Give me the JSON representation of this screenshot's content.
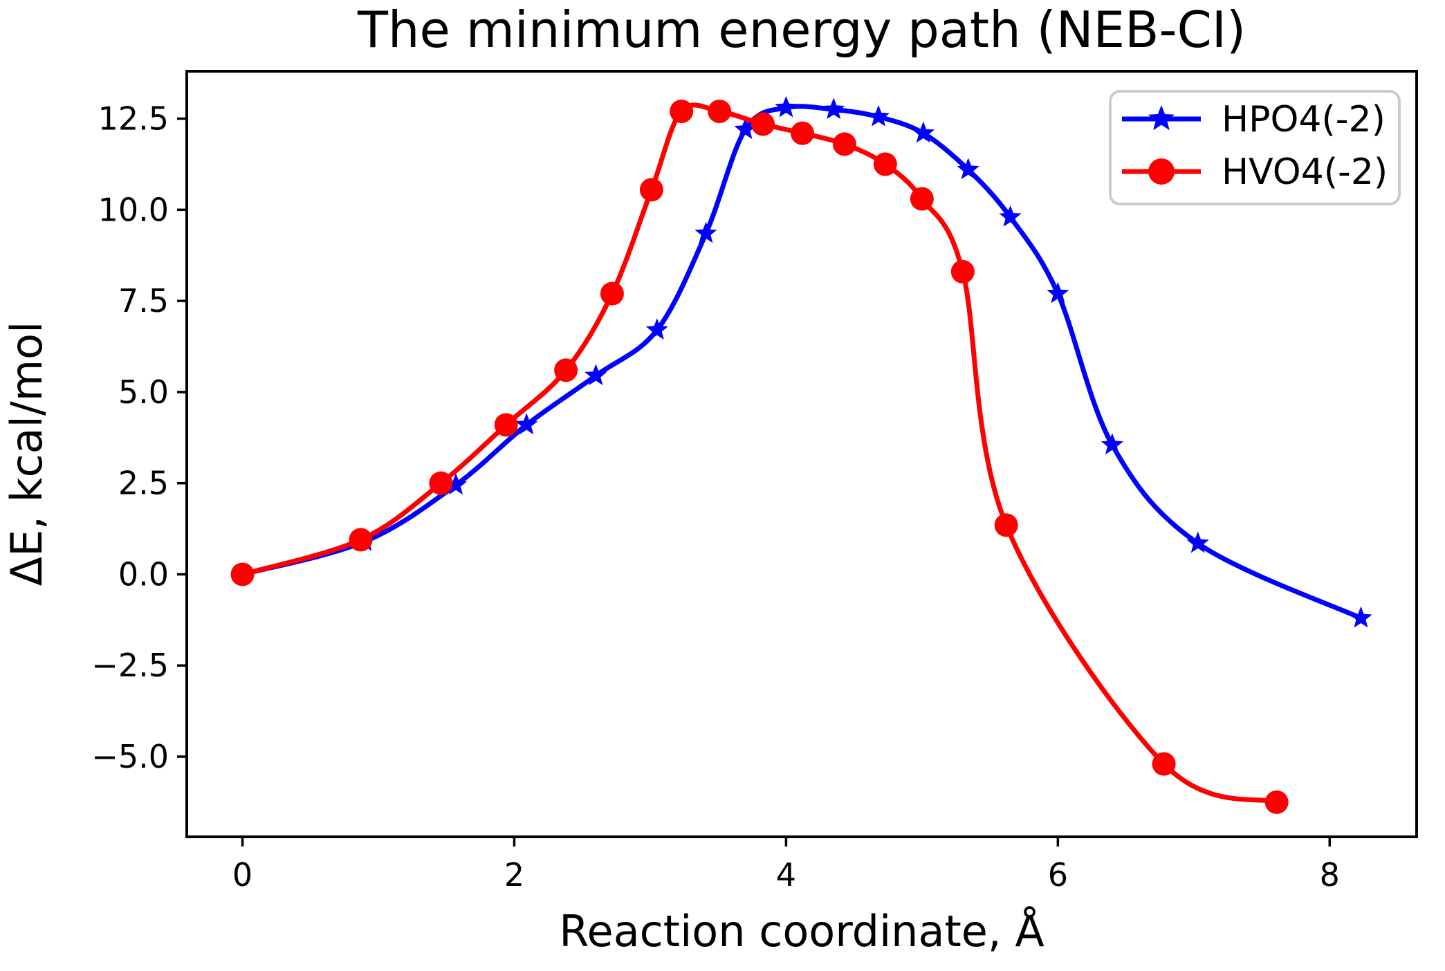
{
  "figure": {
    "background": "#ffffff"
  },
  "chart_data": {
    "type": "line",
    "title": "The minimum energy path (NEB-CI)",
    "xlabel": "Reaction coordinate, Å",
    "ylabel": "ΔE, kcal/mol",
    "xlim": [
      -0.41,
      8.64
    ],
    "ylim": [
      -7.2,
      13.8
    ],
    "x_ticks": [
      0,
      2,
      4,
      6,
      8
    ],
    "x_tick_labels": [
      "0",
      "2",
      "4",
      "6",
      "8"
    ],
    "y_ticks": [
      -5.0,
      -2.5,
      0.0,
      2.5,
      5.0,
      7.5,
      10.0,
      12.5
    ],
    "y_tick_labels": [
      "−5.0",
      "−2.5",
      "0.0",
      "2.5",
      "5.0",
      "7.5",
      "10.0",
      "12.5"
    ],
    "grid": false,
    "legend": {
      "position": "upper right",
      "entries": [
        "HPO4(-2)",
        "HVO4(-2)"
      ]
    },
    "series": [
      {
        "name": "HPO4(-2)",
        "color": "#0000ff",
        "marker": "star",
        "x": [
          0.0,
          0.9,
          1.57,
          2.09,
          2.6,
          3.05,
          3.41,
          3.7,
          4.0,
          4.35,
          4.68,
          5.01,
          5.34,
          5.65,
          6.0,
          6.4,
          7.03,
          8.23
        ],
        "y": [
          0.0,
          0.9,
          2.45,
          4.1,
          5.45,
          6.7,
          9.35,
          12.2,
          12.8,
          12.75,
          12.55,
          12.1,
          11.1,
          9.8,
          7.7,
          3.55,
          0.85,
          -1.2
        ]
      },
      {
        "name": "HVO4(-2)",
        "color": "#ff0000",
        "marker": "circle",
        "x": [
          0.0,
          0.87,
          1.46,
          1.94,
          2.38,
          2.72,
          3.01,
          3.23,
          3.51,
          3.83,
          4.12,
          4.43,
          4.73,
          5.0,
          5.3,
          5.62,
          6.78,
          7.61
        ],
        "y": [
          0.0,
          0.95,
          2.5,
          4.1,
          5.6,
          7.7,
          10.55,
          12.7,
          12.7,
          12.35,
          12.1,
          11.8,
          11.25,
          10.3,
          8.3,
          1.35,
          -5.2,
          -6.25
        ]
      }
    ]
  },
  "colors": {
    "axis": "#000000",
    "legend_border": "#cccccc",
    "hpo4": "#0000ff",
    "hvo4": "#ff0000"
  }
}
